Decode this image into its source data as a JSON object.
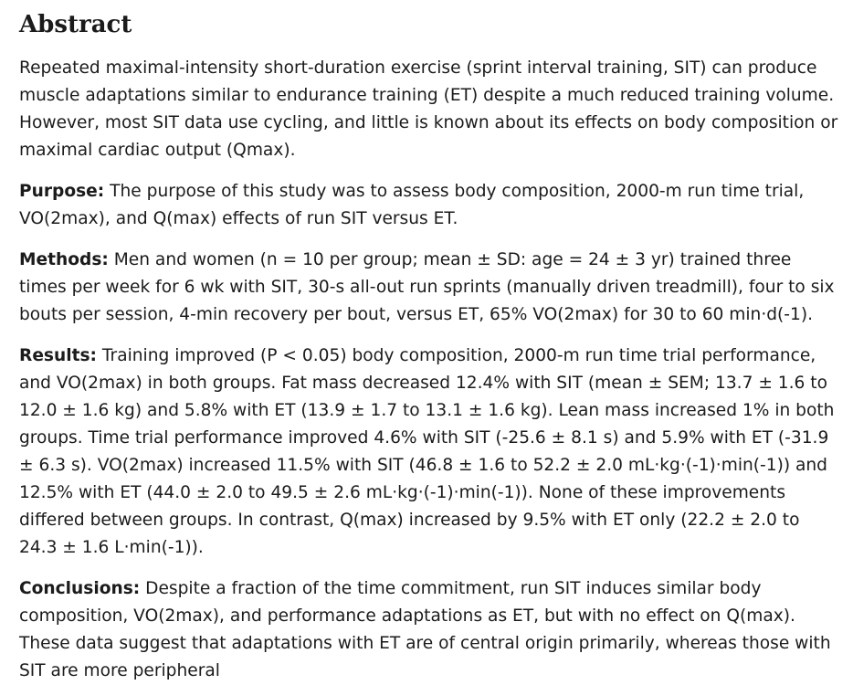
{
  "abstract": {
    "heading": "Abstract",
    "intro": "Repeated maximal-intensity short-duration exercise (sprint interval training, SIT) can produce muscle adaptations similar to endurance training (ET) despite a much reduced training volume. However, most SIT data use cycling, and little is known about its effects on body composition or maximal cardiac output (Qmax).",
    "purpose": {
      "label": "Purpose:",
      "text": "The purpose of this study was to assess body composition, 2000-m run time trial, VO(2max), and Q(max) effects of run SIT versus ET."
    },
    "methods": {
      "label": "Methods:",
      "text": "Men and women (n = 10 per group; mean ± SD: age = 24 ± 3 yr) trained three times per week for 6 wk with SIT, 30-s all-out run sprints (manually driven treadmill), four to six bouts per session, 4-min recovery per bout, versus ET, 65% VO(2max) for 30 to 60 min·d(-1)."
    },
    "results": {
      "label": "Results:",
      "text": "Training improved (P < 0.05) body composition, 2000-m run time trial performance, and VO(2max) in both groups. Fat mass decreased 12.4% with SIT (mean ± SEM; 13.7 ± 1.6 to 12.0 ± 1.6 kg) and 5.8% with ET (13.9 ± 1.7 to 13.1 ± 1.6 kg). Lean mass increased 1% in both groups. Time trial performance improved 4.6% with SIT (-25.6 ± 8.1 s) and 5.9% with ET (-31.9 ± 6.3 s). VO(2max) increased 11.5% with SIT (46.8 ± 1.6 to 52.2 ± 2.0 mL·kg·(-1)·min(-1)) and 12.5% with ET (44.0 ± 2.0 to 49.5 ± 2.6 mL·kg·(-1)·min(-1)). None of these improvements differed between groups. In contrast, Q(max) increased by 9.5% with ET only (22.2 ± 2.0 to 24.3 ± 1.6 L·min(-1))."
    },
    "conclusions": {
      "label": "Conclusions:",
      "text": "Despite a fraction of the time commitment, run SIT induces similar body composition, VO(2max), and performance adaptations as ET, but with no effect on Q(max). These data suggest that adaptations with ET are of central origin primarily, whereas those with SIT are more peripheral"
    }
  }
}
